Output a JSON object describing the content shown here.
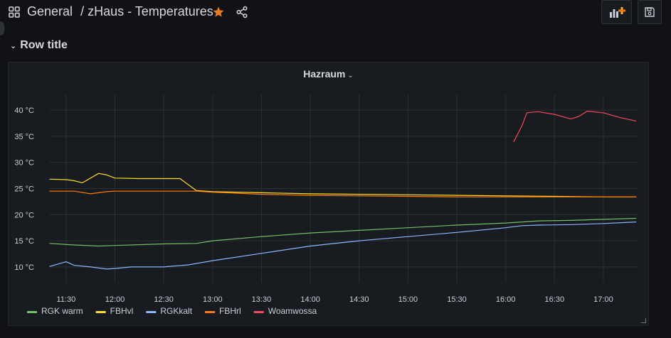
{
  "breadcrumb": {
    "folder": "General",
    "dashboard": "/ zHaus - Temperatures"
  },
  "icons": {
    "apps": "apps-grid-icon",
    "star": "star-icon",
    "share": "share-icon",
    "add_panel": "add-panel-icon",
    "save": "save-icon"
  },
  "colors": {
    "star": "#eb7b18",
    "background": "#111217",
    "panel": "#181b1f"
  },
  "row": {
    "title": "Row title"
  },
  "panel": {
    "title": "Hazraum"
  },
  "chart_data": {
    "type": "line",
    "title": "Hazraum",
    "xlabel": "",
    "ylabel": "",
    "x_ticks": [
      "11:30",
      "12:00",
      "12:30",
      "13:00",
      "13:30",
      "14:00",
      "14:30",
      "15:00",
      "15:30",
      "16:00",
      "16:30",
      "17:00"
    ],
    "y_ticks": [
      "10 °C",
      "15 °C",
      "20 °C",
      "25 °C",
      "30 °C",
      "35 °C",
      "40 °C"
    ],
    "xlim": [
      "11:20",
      "17:21"
    ],
    "ylim": [
      7,
      43
    ],
    "grid": true,
    "legend": "bottom-left",
    "series": [
      {
        "name": "RGK warm",
        "color": "#73bf69",
        "x": [
          "11:20",
          "11:35",
          "11:50",
          "12:00",
          "12:30",
          "12:50",
          "13:00",
          "13:30",
          "14:00",
          "14:30",
          "15:00",
          "15:30",
          "16:00",
          "16:10",
          "16:20",
          "16:40",
          "17:00",
          "17:20"
        ],
        "y": [
          14.5,
          14.2,
          14.0,
          14.1,
          14.4,
          14.5,
          15.0,
          15.8,
          16.5,
          17.0,
          17.5,
          18.0,
          18.4,
          18.6,
          18.8,
          18.9,
          19.1,
          19.3
        ]
      },
      {
        "name": "FBHvl",
        "color": "#fade2a",
        "x": [
          "11:20",
          "11:30",
          "11:35",
          "11:40",
          "11:45",
          "11:50",
          "11:55",
          "12:00",
          "12:15",
          "12:30",
          "12:40",
          "12:50",
          "13:00",
          "13:30",
          "14:00",
          "14:30",
          "15:00",
          "15:30",
          "16:00",
          "16:30",
          "17:00",
          "17:20"
        ],
        "y": [
          26.8,
          26.7,
          26.5,
          26.1,
          27.0,
          27.9,
          27.6,
          27.0,
          26.9,
          26.9,
          26.9,
          24.6,
          24.4,
          24.2,
          24.0,
          23.9,
          23.8,
          23.7,
          23.6,
          23.5,
          23.4,
          23.4
        ]
      },
      {
        "name": "RGKkalt",
        "color": "#8ab8ff",
        "x": [
          "11:20",
          "11:30",
          "11:35",
          "11:45",
          "11:55",
          "12:00",
          "12:10",
          "12:30",
          "12:45",
          "13:00",
          "13:30",
          "14:00",
          "14:30",
          "15:00",
          "15:30",
          "16:00",
          "16:10",
          "16:20",
          "16:40",
          "17:00",
          "17:20"
        ],
        "y": [
          10.1,
          11.0,
          10.3,
          10.0,
          9.6,
          9.7,
          10.0,
          10.0,
          10.4,
          11.2,
          12.6,
          14.0,
          15.0,
          15.8,
          16.6,
          17.5,
          17.9,
          18.0,
          18.1,
          18.3,
          18.6
        ]
      },
      {
        "name": "FBHrl",
        "color": "#ff780a",
        "x": [
          "11:20",
          "11:35",
          "11:45",
          "11:55",
          "12:00",
          "12:30",
          "12:50",
          "13:00",
          "13:30",
          "14:00",
          "14:30",
          "15:00",
          "15:30",
          "16:00",
          "16:30",
          "17:00",
          "17:20"
        ],
        "y": [
          24.5,
          24.5,
          24.0,
          24.4,
          24.5,
          24.5,
          24.5,
          24.3,
          23.9,
          23.7,
          23.6,
          23.5,
          23.4,
          23.4,
          23.4,
          23.4,
          23.4
        ]
      },
      {
        "name": "Woamwossa",
        "color": "#f2495c",
        "x": [
          "16:05",
          "16:10",
          "16:13",
          "16:20",
          "16:30",
          "16:40",
          "16:45",
          "16:50",
          "17:00",
          "17:10",
          "17:20"
        ],
        "y": [
          34.0,
          37.0,
          39.5,
          39.7,
          39.2,
          38.3,
          38.8,
          39.8,
          39.5,
          38.6,
          37.9
        ]
      }
    ]
  }
}
